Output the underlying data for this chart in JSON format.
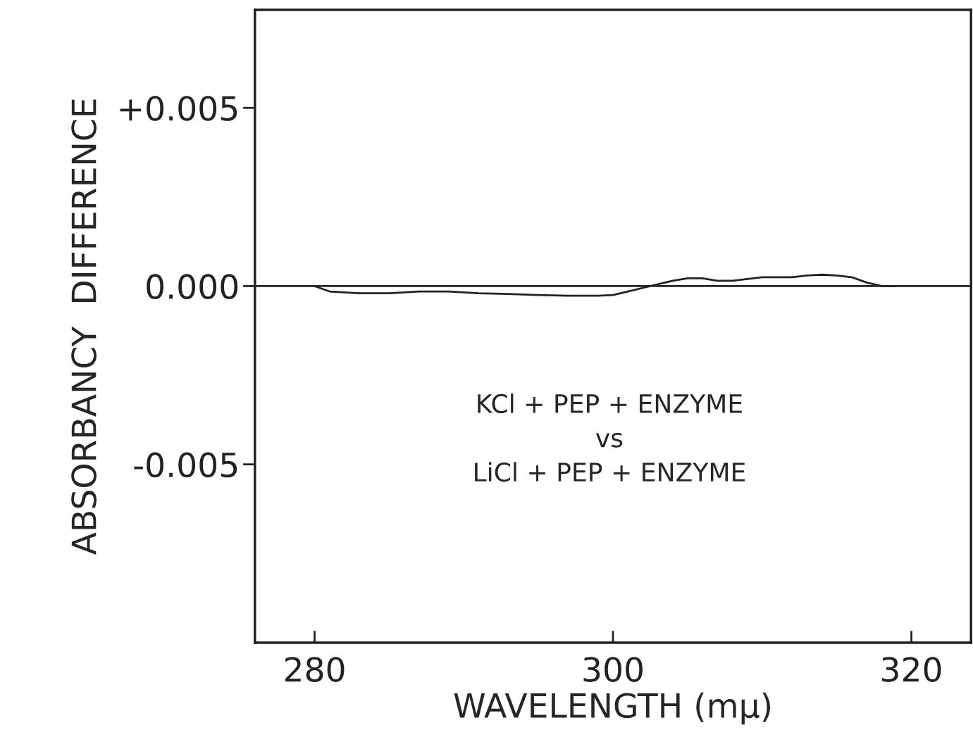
{
  "chart_data": {
    "type": "line",
    "xlabel": "WAVELENGTH (mμ)",
    "ylabel": "ABSORBANCY  DIFFERENCE",
    "x": [
      280,
      281,
      283,
      285,
      287,
      289,
      291,
      293,
      295,
      297,
      299,
      300,
      301,
      302,
      303,
      304,
      305,
      306,
      307,
      308,
      309,
      310,
      311,
      312,
      313,
      314,
      315,
      316,
      317,
      318,
      319
    ],
    "series": [
      {
        "color": "#222222",
        "values": [
          0,
          -0.00015,
          -0.0002,
          -0.0002,
          -0.00015,
          -0.00015,
          -0.0002,
          -0.00022,
          -0.00025,
          -0.00027,
          -0.00027,
          -0.00025,
          -0.00015,
          -5e-05,
          5e-05,
          0.00015,
          0.00022,
          0.00022,
          0.00015,
          0.00015,
          0.0002,
          0.00025,
          0.00025,
          0.00025,
          0.0003,
          0.00032,
          0.0003,
          0.00025,
          0.0001,
          0,
          0
        ]
      }
    ],
    "xlim": [
      276,
      324
    ],
    "ylim": [
      -0.01,
      0.00775
    ],
    "xticks": [
      280,
      300,
      320
    ],
    "yticks": [
      {
        "value": 0.005,
        "label": "+0.005"
      },
      {
        "value": 0,
        "label": "0.000"
      },
      {
        "value": -0.005,
        "label": "-0.005"
      }
    ],
    "ref_lines": [
      {
        "axis": "y",
        "value": 0,
        "color": "#222222"
      }
    ],
    "annotations": [
      "KCl + PEP + ENZYME\nvs\nLiCl + PEP + ENZYME"
    ],
    "grid": false,
    "legend": false,
    "marker": "none",
    "line_style": "solid"
  }
}
